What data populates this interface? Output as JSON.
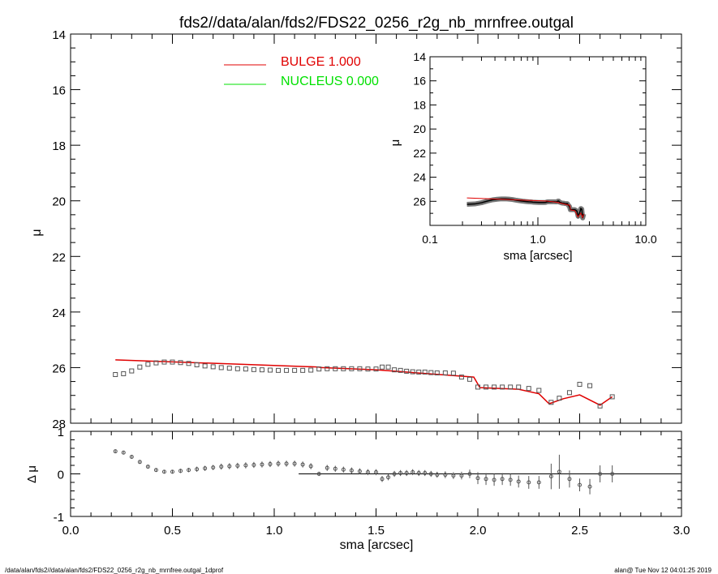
{
  "title": "fds2//data/alan/fds2/FDS22_0256_r2g_nb_mrnfree.outgal",
  "footer": {
    "left": "/data/alan/fds2//data/alan/fds2/FDS22_0256_r2g_nb_mrnfree.outgal_1dprof",
    "right": "alan@  Tue Nov 12 04:01:25 2019"
  },
  "legend": [
    {
      "label": "BULGE  1.000",
      "color": "#e00000"
    },
    {
      "label": "NUCLEUS  0.000",
      "color": "#00e000"
    }
  ],
  "colors": {
    "model": "#e00000",
    "nucleus": "#00e000",
    "data": "#555555",
    "axes": "#000000"
  },
  "chart_data": [
    {
      "id": "main",
      "type": "scatter",
      "xlabel": "sma [arcsec]",
      "ylabel": "μ",
      "xlim": [
        0,
        3
      ],
      "ylim": [
        28,
        14
      ],
      "xticks": [
        "0.0",
        "0.5",
        "1.0",
        "1.5",
        "2.0",
        "2.5",
        "3.0"
      ],
      "yticks": [
        "14",
        "16",
        "18",
        "20",
        "22",
        "24",
        "26",
        "28"
      ],
      "series": [
        {
          "name": "BULGE",
          "kind": "line",
          "x": [
            0.22,
            1.22,
            1.23,
            1.5,
            1.98,
            2.01,
            2.2,
            2.3,
            2.35,
            2.42,
            2.5,
            2.6,
            2.66
          ],
          "y": [
            25.72,
            25.98,
            26.0,
            26.08,
            26.34,
            26.72,
            26.78,
            26.94,
            27.3,
            27.12,
            26.98,
            27.35,
            27.05
          ]
        },
        {
          "name": "data",
          "kind": "points",
          "x": [
            0.22,
            0.26,
            0.3,
            0.34,
            0.38,
            0.42,
            0.46,
            0.5,
            0.54,
            0.58,
            0.62,
            0.66,
            0.7,
            0.74,
            0.78,
            0.82,
            0.86,
            0.9,
            0.94,
            0.98,
            1.02,
            1.06,
            1.1,
            1.14,
            1.18,
            1.22,
            1.26,
            1.3,
            1.34,
            1.38,
            1.42,
            1.46,
            1.5,
            1.53,
            1.56,
            1.59,
            1.62,
            1.65,
            1.68,
            1.71,
            1.74,
            1.77,
            1.8,
            1.84,
            1.88,
            1.92,
            1.96,
            2.0,
            2.04,
            2.08,
            2.12,
            2.16,
            2.2,
            2.25,
            2.3,
            2.36,
            2.4,
            2.45,
            2.5,
            2.55,
            2.6,
            2.66
          ],
          "y": [
            26.25,
            26.22,
            26.12,
            25.98,
            25.88,
            25.83,
            25.8,
            25.8,
            25.82,
            25.85,
            25.9,
            25.94,
            25.97,
            26.0,
            26.02,
            26.04,
            26.05,
            26.07,
            26.08,
            26.09,
            26.1,
            26.1,
            26.1,
            26.1,
            26.09,
            26.05,
            26.04,
            26.04,
            26.04,
            26.04,
            26.04,
            26.05,
            26.05,
            25.98,
            25.98,
            26.08,
            26.1,
            26.13,
            26.15,
            26.16,
            26.16,
            26.18,
            26.19,
            26.19,
            26.2,
            26.34,
            26.42,
            26.7,
            26.7,
            26.7,
            26.7,
            26.7,
            26.7,
            26.75,
            26.82,
            27.25,
            27.1,
            26.9,
            26.6,
            26.65,
            27.38,
            27.05
          ]
        }
      ]
    },
    {
      "id": "residual",
      "type": "scatter",
      "xlabel": "",
      "ylabel": "Δ μ",
      "xlim": [
        0,
        3
      ],
      "ylim": [
        -1,
        1
      ],
      "yticks": [
        "-1",
        "0",
        "1"
      ],
      "series": [
        {
          "name": "zero",
          "kind": "line",
          "x": [
            1.12,
            3.0
          ],
          "y": [
            0,
            0
          ]
        },
        {
          "name": "delta",
          "kind": "errorbars",
          "x": [
            0.22,
            0.26,
            0.3,
            0.34,
            0.38,
            0.42,
            0.46,
            0.5,
            0.54,
            0.58,
            0.62,
            0.66,
            0.7,
            0.74,
            0.78,
            0.82,
            0.86,
            0.9,
            0.94,
            0.98,
            1.02,
            1.06,
            1.1,
            1.14,
            1.18,
            1.22,
            1.26,
            1.3,
            1.34,
            1.38,
            1.42,
            1.46,
            1.5,
            1.53,
            1.56,
            1.59,
            1.62,
            1.65,
            1.68,
            1.71,
            1.74,
            1.77,
            1.8,
            1.84,
            1.88,
            1.92,
            1.96,
            2.0,
            2.04,
            2.08,
            2.12,
            2.16,
            2.2,
            2.25,
            2.3,
            2.36,
            2.4,
            2.45,
            2.5,
            2.55,
            2.6,
            2.66
          ],
          "y": [
            0.53,
            0.5,
            0.4,
            0.28,
            0.17,
            0.09,
            0.05,
            0.05,
            0.07,
            0.09,
            0.11,
            0.13,
            0.15,
            0.17,
            0.18,
            0.19,
            0.2,
            0.21,
            0.22,
            0.23,
            0.24,
            0.24,
            0.24,
            0.22,
            0.18,
            0.0,
            0.14,
            0.12,
            0.1,
            0.08,
            0.06,
            0.04,
            0.04,
            -0.12,
            -0.08,
            0.0,
            0.02,
            0.02,
            0.04,
            0.02,
            0.02,
            0.0,
            -0.02,
            -0.02,
            -0.04,
            -0.04,
            0.0,
            -0.1,
            -0.12,
            -0.14,
            -0.12,
            -0.14,
            -0.18,
            -0.2,
            -0.2,
            -0.06,
            0.05,
            -0.12,
            -0.26,
            -0.3,
            0.0,
            0.0
          ],
          "err": [
            0.03,
            0.03,
            0.03,
            0.03,
            0.03,
            0.04,
            0.04,
            0.04,
            0.05,
            0.05,
            0.06,
            0.06,
            0.06,
            0.07,
            0.07,
            0.07,
            0.07,
            0.07,
            0.07,
            0.07,
            0.07,
            0.07,
            0.07,
            0.07,
            0.07,
            0.05,
            0.07,
            0.07,
            0.07,
            0.07,
            0.07,
            0.07,
            0.07,
            0.07,
            0.07,
            0.07,
            0.07,
            0.07,
            0.07,
            0.07,
            0.07,
            0.07,
            0.07,
            0.08,
            0.08,
            0.09,
            0.1,
            0.14,
            0.14,
            0.14,
            0.14,
            0.14,
            0.14,
            0.15,
            0.15,
            0.3,
            0.4,
            0.2,
            0.15,
            0.18,
            0.2,
            0.2
          ]
        }
      ]
    },
    {
      "id": "inset",
      "type": "line",
      "xlabel": "sma [arcsec]",
      "ylabel": "μ",
      "xscale": "log",
      "xlim": [
        0.1,
        10
      ],
      "ylim": [
        28,
        14
      ],
      "xticks": [
        "0.1",
        "1.0",
        "10.0"
      ],
      "yticks": [
        "14",
        "16",
        "18",
        "20",
        "22",
        "24",
        "26"
      ],
      "series": [
        {
          "name": "BULGE",
          "kind": "line",
          "x": [
            0.22,
            1.22,
            1.5,
            1.98,
            2.01,
            2.2,
            2.35,
            2.5,
            2.6,
            2.66
          ],
          "y": [
            25.72,
            25.98,
            26.08,
            26.34,
            26.72,
            26.78,
            27.3,
            26.98,
            27.35,
            27.05
          ]
        },
        {
          "name": "data",
          "kind": "thick",
          "x": [
            0.22,
            0.26,
            0.3,
            0.34,
            0.38,
            0.42,
            0.46,
            0.5,
            0.54,
            0.58,
            0.62,
            0.66,
            0.7,
            0.74,
            0.78,
            0.82,
            0.86,
            0.9,
            0.94,
            0.98,
            1.02,
            1.06,
            1.1,
            1.14,
            1.18,
            1.22,
            1.26,
            1.3,
            1.34,
            1.38,
            1.42,
            1.46,
            1.5,
            1.53,
            1.56,
            1.59,
            1.62,
            1.65,
            1.68,
            1.71,
            1.74,
            1.77,
            1.8,
            1.84,
            1.88,
            1.92,
            1.96,
            2.0,
            2.04,
            2.08,
            2.12,
            2.16,
            2.2,
            2.25,
            2.3,
            2.36,
            2.4,
            2.45,
            2.5,
            2.55,
            2.6,
            2.66
          ],
          "y": [
            26.25,
            26.22,
            26.12,
            25.98,
            25.88,
            25.83,
            25.8,
            25.8,
            25.82,
            25.85,
            25.9,
            25.94,
            25.97,
            26.0,
            26.02,
            26.04,
            26.05,
            26.07,
            26.08,
            26.09,
            26.1,
            26.1,
            26.1,
            26.1,
            26.09,
            26.05,
            26.04,
            26.04,
            26.04,
            26.04,
            26.04,
            26.05,
            26.05,
            25.98,
            25.98,
            26.08,
            26.1,
            26.13,
            26.15,
            26.16,
            26.16,
            26.18,
            26.19,
            26.19,
            26.2,
            26.34,
            26.42,
            26.7,
            26.7,
            26.7,
            26.7,
            26.7,
            26.7,
            26.75,
            26.82,
            27.25,
            27.1,
            26.9,
            26.6,
            26.65,
            27.38,
            27.05
          ]
        }
      ]
    }
  ]
}
